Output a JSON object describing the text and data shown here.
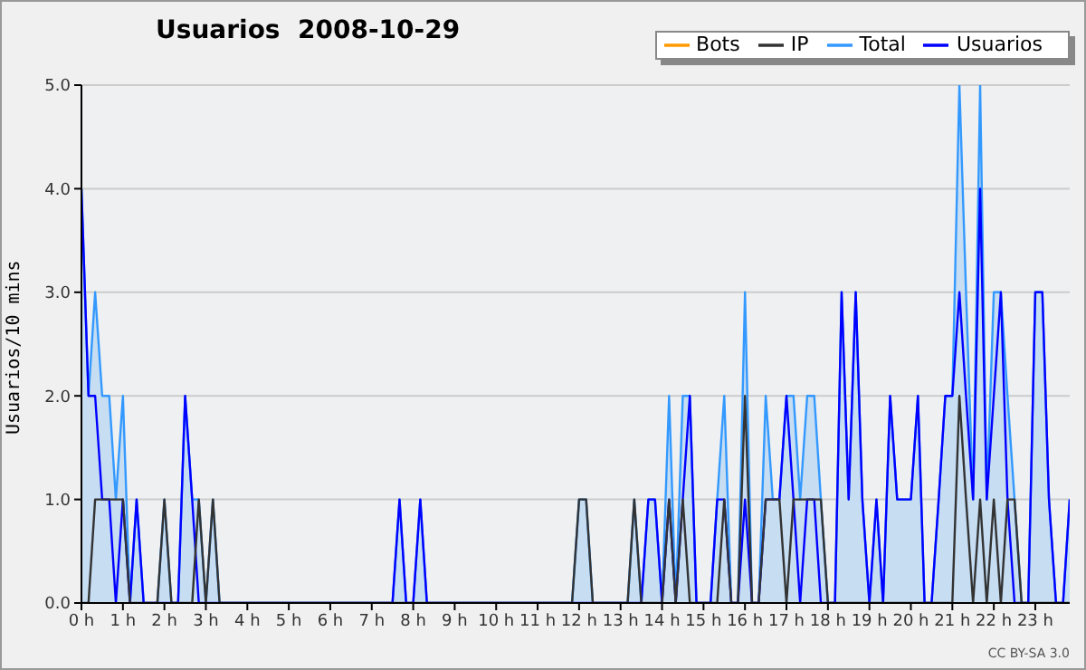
{
  "chart_data": {
    "type": "line",
    "title": "Usuarios  2008-10-29",
    "ylabel": "Usuarios/10 mins",
    "annotations": [
      "CC BY-SA 3.0"
    ],
    "x": [
      0,
      0.17,
      0.33,
      0.5,
      0.67,
      0.83,
      1,
      1.17,
      1.33,
      1.5,
      1.67,
      1.83,
      2,
      2.17,
      2.33,
      2.5,
      2.67,
      2.83,
      3,
      3.17,
      3.33,
      3.5,
      3.67,
      3.83,
      4,
      4.17,
      4.33,
      4.5,
      4.67,
      4.83,
      5,
      5.17,
      5.33,
      5.5,
      5.67,
      5.83,
      6,
      6.17,
      6.33,
      6.5,
      6.67,
      6.83,
      7,
      7.17,
      7.33,
      7.5,
      7.67,
      7.83,
      8,
      8.17,
      8.33,
      8.5,
      8.67,
      8.83,
      9,
      9.17,
      9.33,
      9.5,
      9.67,
      9.83,
      10,
      10.17,
      10.33,
      10.5,
      10.67,
      10.83,
      11,
      11.17,
      11.33,
      11.5,
      11.67,
      11.83,
      12,
      12.17,
      12.33,
      12.5,
      12.67,
      12.83,
      13,
      13.17,
      13.33,
      13.5,
      13.67,
      13.83,
      14,
      14.17,
      14.33,
      14.5,
      14.67,
      14.83,
      15,
      15.17,
      15.33,
      15.5,
      15.67,
      15.83,
      16,
      16.17,
      16.33,
      16.5,
      16.67,
      16.83,
      17,
      17.17,
      17.33,
      17.5,
      17.67,
      17.83,
      18,
      18.17,
      18.33,
      18.5,
      18.67,
      18.83,
      19,
      19.17,
      19.33,
      19.5,
      19.67,
      19.83,
      20,
      20.17,
      20.33,
      20.5,
      20.67,
      20.83,
      21,
      21.17,
      21.33,
      21.5,
      21.67,
      21.83,
      22,
      22.17,
      22.33,
      22.5,
      22.67,
      22.83,
      23,
      23.17,
      23.33,
      23.5,
      23.67,
      23.83
    ],
    "series": [
      {
        "name": "Total",
        "type": "area",
        "color": "#3399ff",
        "values": [
          4,
          2,
          3,
          2,
          2,
          1,
          2,
          0,
          1,
          0,
          0,
          0,
          1,
          0,
          0,
          2,
          1,
          1,
          0,
          1,
          0,
          0,
          0,
          0,
          0,
          0,
          0,
          0,
          0,
          0,
          0,
          0,
          0,
          0,
          0,
          0,
          0,
          0,
          0,
          0,
          0,
          0,
          0,
          0,
          0,
          0,
          1,
          0,
          0,
          1,
          0,
          0,
          0,
          0,
          0,
          0,
          0,
          0,
          0,
          0,
          0,
          0,
          0,
          0,
          0,
          0,
          0,
          0,
          0,
          0,
          0,
          0,
          1,
          1,
          0,
          0,
          0,
          0,
          0,
          0,
          1,
          0,
          1,
          1,
          0,
          2,
          0,
          2,
          2,
          0,
          0,
          0,
          1,
          2,
          0,
          0,
          3,
          0,
          0,
          2,
          1,
          1,
          2,
          2,
          1,
          2,
          2,
          1,
          0,
          0,
          3,
          1,
          3,
          1,
          0,
          1,
          0,
          2,
          1,
          1,
          1,
          2,
          0,
          0,
          1,
          2,
          2,
          5,
          3,
          1,
          5,
          1,
          3,
          3,
          2,
          1,
          0,
          0,
          3,
          3,
          1,
          0,
          0,
          1
        ]
      },
      {
        "name": "Usuarios",
        "color": "#0000ff",
        "values": [
          4,
          2,
          2,
          1,
          1,
          0,
          1,
          0,
          1,
          0,
          0,
          0,
          0,
          0,
          0,
          2,
          1,
          0,
          0,
          0,
          0,
          0,
          0,
          0,
          0,
          0,
          0,
          0,
          0,
          0,
          0,
          0,
          0,
          0,
          0,
          0,
          0,
          0,
          0,
          0,
          0,
          0,
          0,
          0,
          0,
          0,
          1,
          0,
          0,
          1,
          0,
          0,
          0,
          0,
          0,
          0,
          0,
          0,
          0,
          0,
          0,
          0,
          0,
          0,
          0,
          0,
          0,
          0,
          0,
          0,
          0,
          0,
          0,
          0,
          0,
          0,
          0,
          0,
          0,
          0,
          0,
          0,
          1,
          1,
          0,
          1,
          0,
          1,
          2,
          0,
          0,
          0,
          1,
          1,
          0,
          0,
          1,
          0,
          0,
          1,
          1,
          1,
          2,
          1,
          0,
          1,
          1,
          0,
          0,
          0,
          3,
          1,
          3,
          1,
          0,
          1,
          0,
          2,
          1,
          1,
          1,
          2,
          0,
          0,
          1,
          2,
          2,
          3,
          2,
          1,
          4,
          1,
          2,
          3,
          1,
          0,
          0,
          0,
          3,
          3,
          1,
          0,
          0,
          1
        ]
      },
      {
        "name": "IP",
        "color": "#333333",
        "values": [
          0,
          0,
          1,
          1,
          1,
          1,
          1,
          0,
          0,
          0,
          0,
          0,
          1,
          0,
          0,
          0,
          0,
          1,
          0,
          1,
          0,
          0,
          0,
          0,
          0,
          0,
          0,
          0,
          0,
          0,
          0,
          0,
          0,
          0,
          0,
          0,
          0,
          0,
          0,
          0,
          0,
          0,
          0,
          0,
          0,
          0,
          0,
          0,
          0,
          0,
          0,
          0,
          0,
          0,
          0,
          0,
          0,
          0,
          0,
          0,
          0,
          0,
          0,
          0,
          0,
          0,
          0,
          0,
          0,
          0,
          0,
          0,
          1,
          1,
          0,
          0,
          0,
          0,
          0,
          0,
          1,
          0,
          0,
          0,
          0,
          1,
          0,
          1,
          0,
          0,
          0,
          0,
          0,
          1,
          0,
          0,
          2,
          0,
          0,
          1,
          1,
          1,
          0,
          1,
          1,
          1,
          1,
          1,
          0,
          0,
          0,
          0,
          0,
          0,
          0,
          0,
          0,
          0,
          0,
          0,
          0,
          0,
          0,
          0,
          0,
          0,
          0,
          2,
          1,
          0,
          1,
          0,
          1,
          0,
          1,
          1,
          0,
          0,
          0,
          0,
          0,
          0,
          0,
          0
        ]
      },
      {
        "name": "Bots",
        "color": "#ff9900",
        "values": [
          null,
          null,
          null,
          null,
          null,
          null,
          null,
          null,
          null,
          null,
          null,
          null,
          null,
          null,
          null,
          null,
          null,
          null,
          null,
          null,
          null,
          null,
          null,
          null,
          null,
          null,
          null,
          null,
          null,
          null,
          null,
          null,
          null,
          null,
          null,
          null,
          null,
          null,
          null,
          null,
          null,
          null,
          null,
          null,
          null,
          null,
          null,
          null,
          null,
          null,
          null,
          null,
          null,
          null,
          null,
          null,
          null,
          null,
          null,
          null,
          null,
          null,
          null,
          null,
          null,
          null,
          null,
          null,
          null,
          null,
          null,
          null,
          null,
          null,
          null,
          null,
          null,
          null,
          null,
          null,
          null,
          null,
          null,
          null,
          null,
          null,
          null,
          null,
          null,
          null,
          null,
          null,
          null,
          null,
          null,
          null,
          null,
          null,
          null,
          null,
          null,
          null,
          null,
          null,
          null,
          null,
          null,
          null,
          null,
          null,
          null,
          null,
          null,
          null,
          null,
          null,
          null,
          null,
          null,
          null,
          null,
          null,
          null,
          null,
          null,
          null,
          null,
          null,
          null,
          null,
          null,
          null,
          null,
          null,
          null,
          null,
          null,
          null,
          null,
          null,
          null,
          null,
          null,
          null
        ]
      }
    ],
    "xlim": [
      0,
      23.83
    ],
    "xticks": [
      {
        "value": 0,
        "label": "0 h"
      },
      {
        "value": 1,
        "label": "1 h"
      },
      {
        "value": 2,
        "label": "2 h"
      },
      {
        "value": 3,
        "label": "3 h"
      },
      {
        "value": 4,
        "label": "4 h"
      },
      {
        "value": 5,
        "label": "5 h"
      },
      {
        "value": 6,
        "label": "6 h"
      },
      {
        "value": 7,
        "label": "7 h"
      },
      {
        "value": 8,
        "label": "8 h"
      },
      {
        "value": 9,
        "label": "9 h"
      },
      {
        "value": 10,
        "label": "10 h"
      },
      {
        "value": 11,
        "label": "11 h"
      },
      {
        "value": 12,
        "label": "12 h"
      },
      {
        "value": 13,
        "label": "13 h"
      },
      {
        "value": 14,
        "label": "14 h"
      },
      {
        "value": 15,
        "label": "15 h"
      },
      {
        "value": 16,
        "label": "16 h"
      },
      {
        "value": 17,
        "label": "17 h"
      },
      {
        "value": 18,
        "label": "18 h"
      },
      {
        "value": 19,
        "label": "19 h"
      },
      {
        "value": 20,
        "label": "20 h"
      },
      {
        "value": 21,
        "label": "21 h"
      },
      {
        "value": 22,
        "label": "22 h"
      },
      {
        "value": 23,
        "label": "23 h"
      }
    ],
    "ylim": [
      0,
      5
    ],
    "yticks": [
      {
        "value": 0,
        "label": "0.0"
      },
      {
        "value": 1,
        "label": "1.0"
      },
      {
        "value": 2,
        "label": "2.0"
      },
      {
        "value": 3,
        "label": "3.0"
      },
      {
        "value": 4,
        "label": "4.0"
      },
      {
        "value": 5,
        "label": "5.0"
      }
    ],
    "grid": "y",
    "legend": "top right",
    "marker": "none",
    "line_style": "solid"
  }
}
